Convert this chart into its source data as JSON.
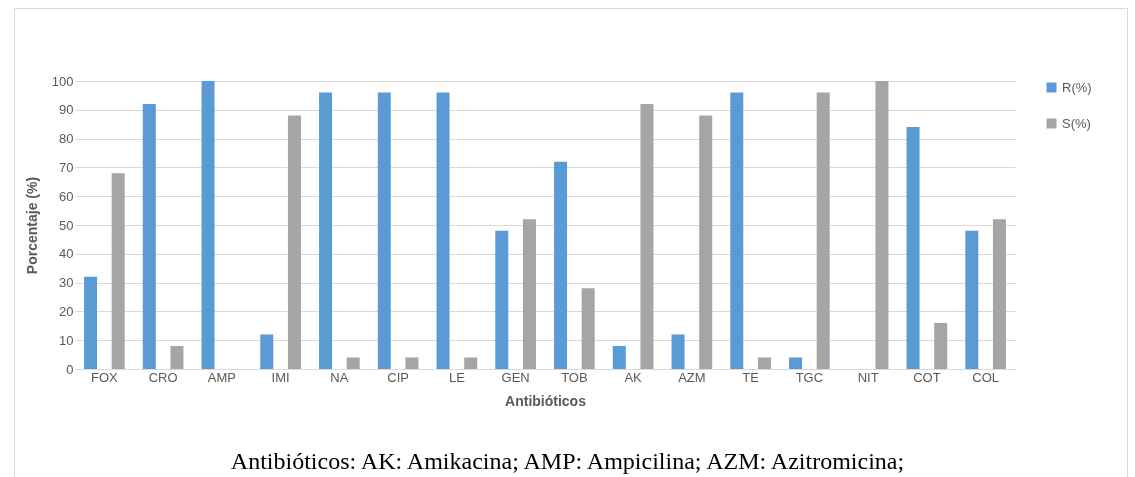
{
  "chart_data": {
    "type": "bar",
    "xlabel": "Antibióticos",
    "ylabel": "Porcentaje (%)",
    "categories": [
      "FOX",
      "CRO",
      "AMP",
      "IMI",
      "NA",
      "CIP",
      "LE",
      "GEN",
      "TOB",
      "AK",
      "AZM",
      "TE",
      "TGC",
      "NIT",
      "COT",
      "COL"
    ],
    "series": [
      {
        "name": "R(%)",
        "color": "#5b9bd5",
        "values": [
          32,
          92,
          100,
          12,
          96,
          96,
          96,
          48,
          72,
          8,
          12,
          96,
          4,
          0,
          84,
          48
        ]
      },
      {
        "name": "S(%)",
        "color": "#a5a5a5",
        "values": [
          68,
          8,
          0,
          88,
          4,
          4,
          4,
          52,
          28,
          92,
          88,
          4,
          96,
          100,
          16,
          52
        ]
      }
    ],
    "ylim": [
      0,
      100
    ],
    "yticks": [
      0,
      10,
      20,
      30,
      40,
      50,
      60,
      70,
      80,
      90,
      100
    ],
    "grid": "y",
    "legend": "right",
    "annotations": [
      "Antibióticos: AK: Amikacina; AMP: Ampicilina; AZM: Azitromicina;"
    ]
  }
}
